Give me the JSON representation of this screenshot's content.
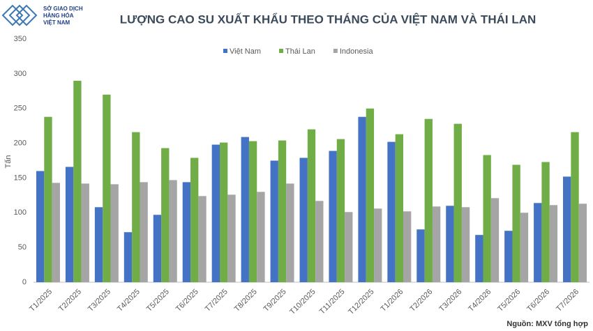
{
  "logo": [
    "SỞ GIAO DỊCH",
    "HÀNG HÓA",
    "VIỆT NAM"
  ],
  "chart_data": {
    "type": "bar",
    "title": "LƯỢNG CAO SU XUẤT KHẨU THEO THÁNG CỦA VIỆT NAM VÀ THÁI LAN",
    "y_label": "Tấn",
    "source": "Nguồn: MXV tổng hợp",
    "categories": [
      "T1/2025",
      "T2/2025",
      "T3/2025",
      "T4/2025",
      "T5/2025",
      "T6/2025",
      "T7/2025",
      "T8/2025",
      "T9/2025",
      "T10/2025",
      "T11/2025",
      "T12/2025",
      "T1/2026",
      "T2/2026",
      "T3/2026",
      "T4/2026",
      "T5/2026",
      "T6/2026",
      "T7/2026"
    ],
    "series": [
      {
        "name": "Việt Nam",
        "color": "#4472c4",
        "values": [
          160,
          166,
          108,
          72,
          97,
          144,
          198,
          209,
          175,
          179,
          189,
          238,
          202,
          76,
          110,
          68,
          74,
          114,
          152
        ]
      },
      {
        "name": "Thái Lan",
        "color": "#70ad47",
        "values": [
          238,
          290,
          270,
          216,
          193,
          179,
          201,
          203,
          204,
          220,
          206,
          250,
          213,
          235,
          228,
          183,
          169,
          173,
          216
        ]
      },
      {
        "name": "Indonesia",
        "color": "#a5a5a5",
        "values": [
          143,
          142,
          141,
          144,
          147,
          124,
          126,
          130,
          142,
          117,
          101,
          106,
          102,
          109,
          108,
          121,
          100,
          111,
          113
        ]
      }
    ],
    "ylim": [
      0,
      350
    ],
    "yticks": [
      0,
      50,
      100,
      150,
      200,
      250,
      300,
      350
    ],
    "grid": false,
    "legend": "top"
  }
}
